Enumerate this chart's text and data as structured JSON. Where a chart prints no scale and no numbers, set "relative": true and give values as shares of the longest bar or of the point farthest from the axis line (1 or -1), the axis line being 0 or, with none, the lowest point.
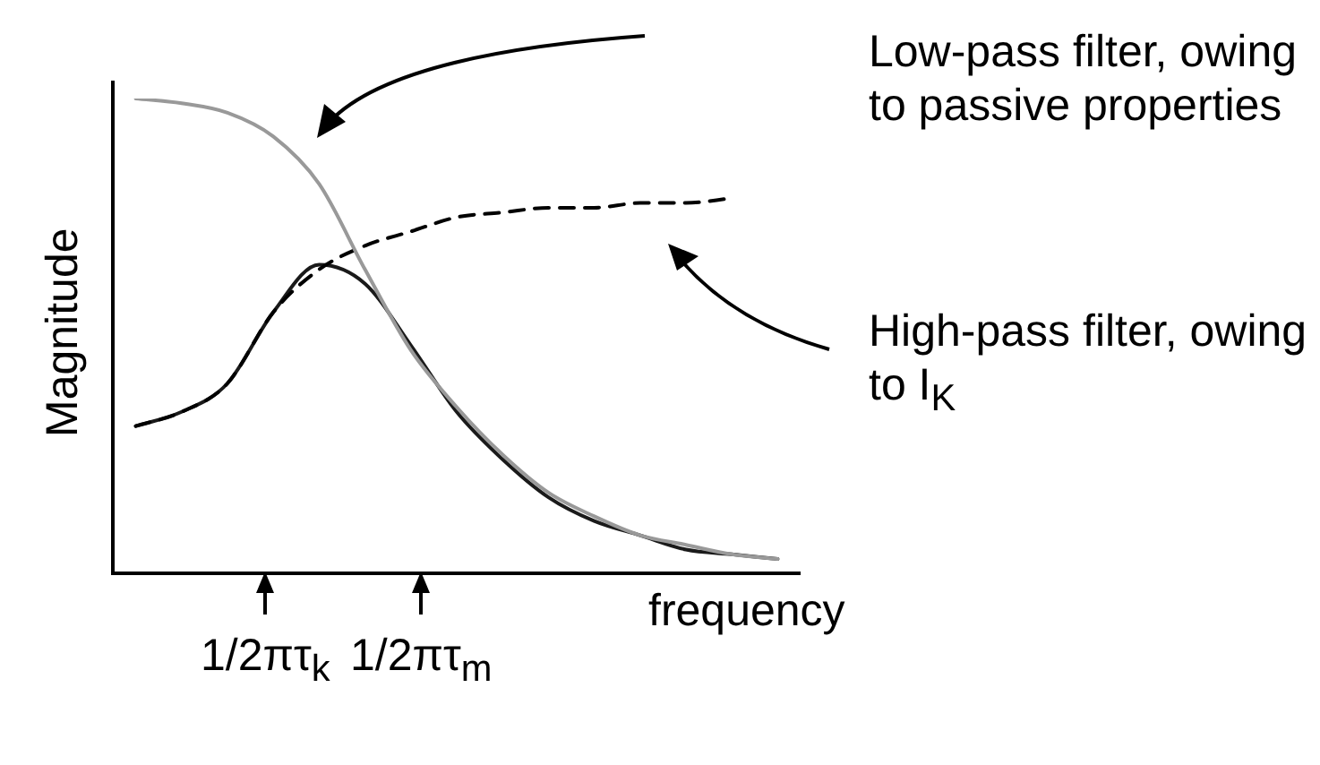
{
  "chart_data": {
    "type": "line",
    "relative": true,
    "xlabel": "frequency",
    "ylabel": "Magnitude",
    "legend": false,
    "marker": "none",
    "categories": [
      null,
      null,
      null,
      null,
      null,
      null,
      null,
      null,
      null,
      null,
      null,
      null,
      null,
      null,
      null
    ],
    "series": [
      {
        "color": "#999999",
        "line_style": "solid",
        "values": [
          1.0,
          0.99,
          0.97,
          0.92,
          0.82,
          0.64,
          0.47,
          0.35,
          0.25,
          0.17,
          0.12,
          0.08,
          0.06,
          0.04,
          0.03
        ]
      },
      {
        "color": "#000000",
        "line_style": "dashed",
        "values": [
          0.31,
          0.34,
          0.4,
          0.55,
          0.64,
          0.69,
          0.72,
          0.75,
          0.76,
          0.77,
          0.77,
          0.78,
          0.78,
          0.79,
          null
        ]
      },
      {
        "color": "#1a1a1a",
        "line_style": "solid",
        "values": [
          0.31,
          0.34,
          0.4,
          0.55,
          0.65,
          0.61,
          0.48,
          0.34,
          0.24,
          0.16,
          0.11,
          0.08,
          0.05,
          0.04,
          0.03
        ]
      }
    ],
    "annotations": [
      "Low-pass filter, owing to passive properties",
      "High-pass filter, owing to I$_{K}$",
      "1/2πτ$_{k}$",
      "1/2πτ$_{m}$"
    ]
  }
}
